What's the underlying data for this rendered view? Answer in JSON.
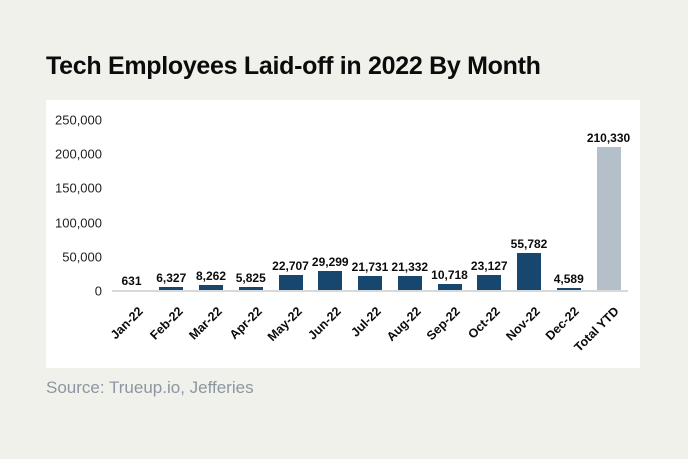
{
  "page": {
    "title": "Tech Employees Laid-off in 2022 By Month",
    "source": "Source: Trueup.io, Jefferies"
  },
  "colors": {
    "background": "#F1F1EB",
    "panel": "#FFFFFF",
    "monthly_bar": "#17466E",
    "total_bar": "#B4BFCA",
    "axis_line": "#D9D9D9",
    "title_text": "#0B0B0B",
    "tick_text": "#1F1F1F",
    "source_text": "#8C96A3"
  },
  "chart_data": {
    "type": "bar",
    "title": "Tech Employees Laid-off in 2022 By Month",
    "xlabel": "",
    "ylabel": "",
    "categories": [
      "Jan-22",
      "Feb-22",
      "Mar-22",
      "Apr-22",
      "May-22",
      "Jun-22",
      "Jul-22",
      "Aug-22",
      "Sep-22",
      "Oct-22",
      "Nov-22",
      "Dec-22",
      "Total YTD"
    ],
    "values": [
      631,
      6327,
      8262,
      5825,
      22707,
      29299,
      21731,
      21332,
      10718,
      23127,
      55782,
      4589,
      210330
    ],
    "data_labels": [
      "631",
      "6,327",
      "8,262",
      "5,825",
      "22,707",
      "29,299",
      "21,731",
      "21,332",
      "10,718",
      "23,127",
      "55,782",
      "4,589",
      "210,330"
    ],
    "highlight_category": "Total YTD",
    "ylim": [
      0,
      250000
    ],
    "y_ticks": [
      "250,000",
      "200,000",
      "150,000",
      "100,000",
      "50,000",
      "0"
    ],
    "grid": false,
    "legend": false,
    "source": "Source: Trueup.io, Jefferies"
  }
}
